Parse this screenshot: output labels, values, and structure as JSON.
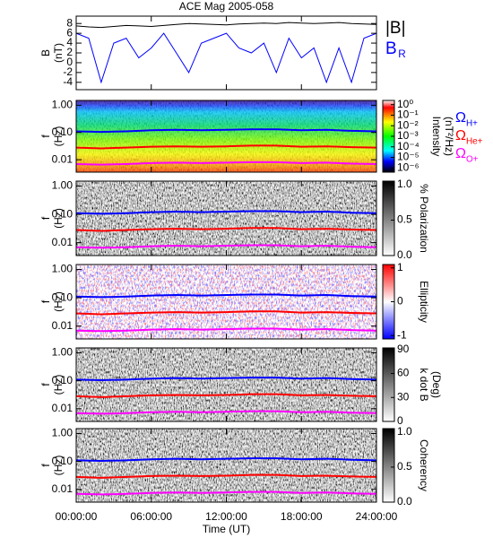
{
  "chart_data": [
    {
      "type": "line",
      "title": "ACE Mag 2005-058",
      "ylabel": [
        "B",
        "(nT)"
      ],
      "x": [
        0,
        1,
        2,
        3,
        4,
        5,
        6,
        7,
        8,
        9,
        10,
        11,
        12,
        13,
        14,
        15,
        16,
        17,
        18,
        19,
        20,
        21,
        22,
        23,
        24
      ],
      "ylim": [
        -5.5,
        9.5
      ],
      "yticks": [
        -4,
        -2,
        0,
        2,
        4,
        6,
        8
      ],
      "series": [
        {
          "name": "|B|",
          "color": "#000000",
          "values": [
            7.5,
            7.3,
            7.2,
            7.4,
            7.6,
            7.5,
            7.4,
            7.6,
            7.8,
            8.0,
            7.9,
            7.8,
            7.7,
            7.9,
            8.0,
            8.1,
            8.0,
            8.2,
            8.1,
            8.0,
            8.1,
            8.2,
            8.0,
            7.9,
            7.8
          ]
        },
        {
          "name": "B",
          "subscript": "R",
          "color": "#0000ff",
          "values": [
            6,
            5,
            -4,
            4,
            5,
            1,
            3,
            6,
            2,
            -2,
            4,
            5,
            6,
            3,
            2,
            4,
            -2,
            5,
            1,
            3,
            -4,
            3,
            -4,
            5,
            6
          ]
        }
      ]
    },
    {
      "type": "spectrogram",
      "ylabel": [
        "f",
        "(Hz)"
      ],
      "log_y": true,
      "ylim": [
        0.0035,
        1.5
      ],
      "yticks": [
        {
          "value": 1,
          "label": "1.00"
        },
        {
          "value": 0.1,
          "label": "0.10"
        },
        {
          "value": 0.01,
          "label": "0.01"
        }
      ],
      "colormap": "rainbow",
      "clog": true,
      "clim": [
        4e-07,
        2.5
      ],
      "cticks": [
        {
          "value": 1,
          "label": "10⁰"
        },
        {
          "value": 0.1,
          "label": "10⁻¹"
        },
        {
          "value": 0.01,
          "label": "10⁻²"
        },
        {
          "value": 0.001,
          "label": "10⁻³"
        },
        {
          "value": 0.0001,
          "label": "10⁻⁴"
        },
        {
          "value": 1e-05,
          "label": "10⁻⁵"
        },
        {
          "value": 1e-06,
          "label": "10⁻⁶"
        }
      ],
      "clabel": [
        "Intensity",
        "(nT²/Hz)"
      ],
      "x": [
        0,
        2,
        4,
        6,
        8,
        10,
        12,
        14,
        16,
        18,
        20,
        22,
        24
      ],
      "series": [
        {
          "name": "Ω",
          "subscript": "H+",
          "color": "#0000ff",
          "values": [
            0.11,
            0.105,
            0.11,
            0.12,
            0.125,
            0.12,
            0.125,
            0.13,
            0.13,
            0.12,
            0.125,
            0.115,
            0.11
          ]
        },
        {
          "name": "Ω",
          "subscript": "He+",
          "color": "#ff0000",
          "values": [
            0.028,
            0.026,
            0.028,
            0.03,
            0.031,
            0.03,
            0.031,
            0.033,
            0.033,
            0.03,
            0.031,
            0.029,
            0.028
          ]
        },
        {
          "name": "Ω",
          "subscript": "O+",
          "color": "#ff00ff",
          "values": [
            0.0069,
            0.0066,
            0.0069,
            0.0075,
            0.0078,
            0.0075,
            0.0078,
            0.0081,
            0.0081,
            0.0075,
            0.0078,
            0.0072,
            0.0069
          ]
        }
      ]
    },
    {
      "type": "spectrogram",
      "ylabel": [
        "f",
        "(Hz)"
      ],
      "log_y": true,
      "ylim": [
        0.0035,
        1.5
      ],
      "yticks": [
        {
          "value": 1,
          "label": "1.00"
        },
        {
          "value": 0.1,
          "label": "0.10"
        },
        {
          "value": 0.01,
          "label": "0.01"
        }
      ],
      "colormap": "gray",
      "clim": [
        0,
        1.05
      ],
      "cticks": [
        {
          "value": 1,
          "label": "1.0"
        },
        {
          "value": 0.5,
          "label": "0.5"
        },
        {
          "value": 0,
          "label": "0.0"
        }
      ],
      "clabel": [
        "% Polarization"
      ],
      "x": [
        0,
        2,
        4,
        6,
        8,
        10,
        12,
        14,
        16,
        18,
        20,
        22,
        24
      ],
      "series": [
        {
          "color": "#0000ff",
          "values": [
            0.11,
            0.105,
            0.11,
            0.12,
            0.125,
            0.12,
            0.125,
            0.13,
            0.13,
            0.12,
            0.125,
            0.115,
            0.11
          ]
        },
        {
          "color": "#ff0000",
          "values": [
            0.028,
            0.026,
            0.028,
            0.03,
            0.031,
            0.03,
            0.031,
            0.033,
            0.033,
            0.03,
            0.031,
            0.029,
            0.028
          ]
        },
        {
          "color": "#ff00ff",
          "values": [
            0.0069,
            0.0066,
            0.0069,
            0.0075,
            0.0078,
            0.0075,
            0.0078,
            0.0081,
            0.0081,
            0.0075,
            0.0078,
            0.0072,
            0.0069
          ]
        }
      ]
    },
    {
      "type": "spectrogram",
      "ylabel": [
        "f",
        "(Hz)"
      ],
      "log_y": true,
      "ylim": [
        0.0035,
        1.5
      ],
      "yticks": [
        {
          "value": 1,
          "label": "1.00"
        },
        {
          "value": 0.1,
          "label": "0.10"
        },
        {
          "value": 0.01,
          "label": "0.01"
        }
      ],
      "colormap": "ellipticity",
      "clim": [
        -1.1,
        1.1
      ],
      "cticks": [
        1,
        0,
        -1
      ],
      "clabel": [
        "Ellipticity"
      ],
      "x": [
        0,
        2,
        4,
        6,
        8,
        10,
        12,
        14,
        16,
        18,
        20,
        22,
        24
      ],
      "series": [
        {
          "color": "#0000ff",
          "values": [
            0.11,
            0.105,
            0.11,
            0.12,
            0.125,
            0.12,
            0.125,
            0.13,
            0.13,
            0.12,
            0.125,
            0.115,
            0.11
          ]
        },
        {
          "color": "#ff0000",
          "values": [
            0.028,
            0.026,
            0.028,
            0.03,
            0.031,
            0.03,
            0.031,
            0.033,
            0.033,
            0.03,
            0.031,
            0.029,
            0.028
          ]
        },
        {
          "color": "#ff00ff",
          "values": [
            0.0069,
            0.0066,
            0.0069,
            0.0075,
            0.0078,
            0.0075,
            0.0078,
            0.0081,
            0.0081,
            0.0075,
            0.0078,
            0.0072,
            0.0069
          ]
        }
      ]
    },
    {
      "type": "spectrogram",
      "ylabel": [
        "f",
        "(Hz)"
      ],
      "log_y": true,
      "ylim": [
        0.0035,
        1.5
      ],
      "yticks": [
        {
          "value": 1,
          "label": "1.00"
        },
        {
          "value": 0.1,
          "label": "0.10"
        },
        {
          "value": 0.01,
          "label": "0.01"
        }
      ],
      "colormap": "gray",
      "clim": [
        0,
        92
      ],
      "cticks": [
        90,
        60,
        30,
        0
      ],
      "clabel": [
        "k dot B",
        "(Deg)"
      ],
      "x": [
        0,
        2,
        4,
        6,
        8,
        10,
        12,
        14,
        16,
        18,
        20,
        22,
        24
      ],
      "series": [
        {
          "color": "#0000ff",
          "values": [
            0.11,
            0.105,
            0.11,
            0.12,
            0.125,
            0.12,
            0.125,
            0.13,
            0.13,
            0.12,
            0.125,
            0.115,
            0.11
          ]
        },
        {
          "color": "#ff0000",
          "values": [
            0.028,
            0.026,
            0.028,
            0.03,
            0.031,
            0.03,
            0.031,
            0.033,
            0.033,
            0.03,
            0.031,
            0.029,
            0.028
          ]
        },
        {
          "color": "#ff00ff",
          "values": [
            0.0069,
            0.0066,
            0.0069,
            0.0075,
            0.0078,
            0.0075,
            0.0078,
            0.0081,
            0.0081,
            0.0075,
            0.0078,
            0.0072,
            0.0069
          ]
        }
      ]
    },
    {
      "type": "spectrogram",
      "ylabel": [
        "f",
        "(Hz)"
      ],
      "log_y": true,
      "ylim": [
        0.0035,
        1.5
      ],
      "yticks": [
        {
          "value": 1,
          "label": "1.00"
        },
        {
          "value": 0.1,
          "label": "0.10"
        },
        {
          "value": 0.01,
          "label": "0.01"
        }
      ],
      "colormap": "gray",
      "clim": [
        0,
        1.05
      ],
      "cticks": [
        {
          "value": 1,
          "label": "1.0"
        },
        {
          "value": 0.5,
          "label": "0.5"
        },
        {
          "value": 0,
          "label": "0.0"
        }
      ],
      "clabel": [
        "Coherency"
      ],
      "x": [
        0,
        2,
        4,
        6,
        8,
        10,
        12,
        14,
        16,
        18,
        20,
        22,
        24
      ],
      "series": [
        {
          "color": "#0000ff",
          "values": [
            0.11,
            0.105,
            0.11,
            0.12,
            0.125,
            0.12,
            0.125,
            0.13,
            0.13,
            0.12,
            0.125,
            0.115,
            0.11
          ]
        },
        {
          "color": "#ff0000",
          "values": [
            0.028,
            0.026,
            0.028,
            0.03,
            0.031,
            0.03,
            0.031,
            0.033,
            0.033,
            0.03,
            0.031,
            0.029,
            0.028
          ]
        },
        {
          "color": "#ff00ff",
          "values": [
            0.0069,
            0.0066,
            0.0069,
            0.0075,
            0.0078,
            0.0075,
            0.0078,
            0.0081,
            0.0081,
            0.0075,
            0.0078,
            0.0072,
            0.0069
          ]
        }
      ],
      "xlim": [
        0,
        24
      ],
      "xticks": [
        {
          "value": 0,
          "label": "00:00:00"
        },
        {
          "value": 6,
          "label": "06:00:00"
        },
        {
          "value": 12,
          "label": "12:00:00"
        },
        {
          "value": 18,
          "label": "18:00:00"
        },
        {
          "value": 24,
          "label": "24:00:00"
        }
      ],
      "xlabel": "Time (UT)"
    }
  ]
}
